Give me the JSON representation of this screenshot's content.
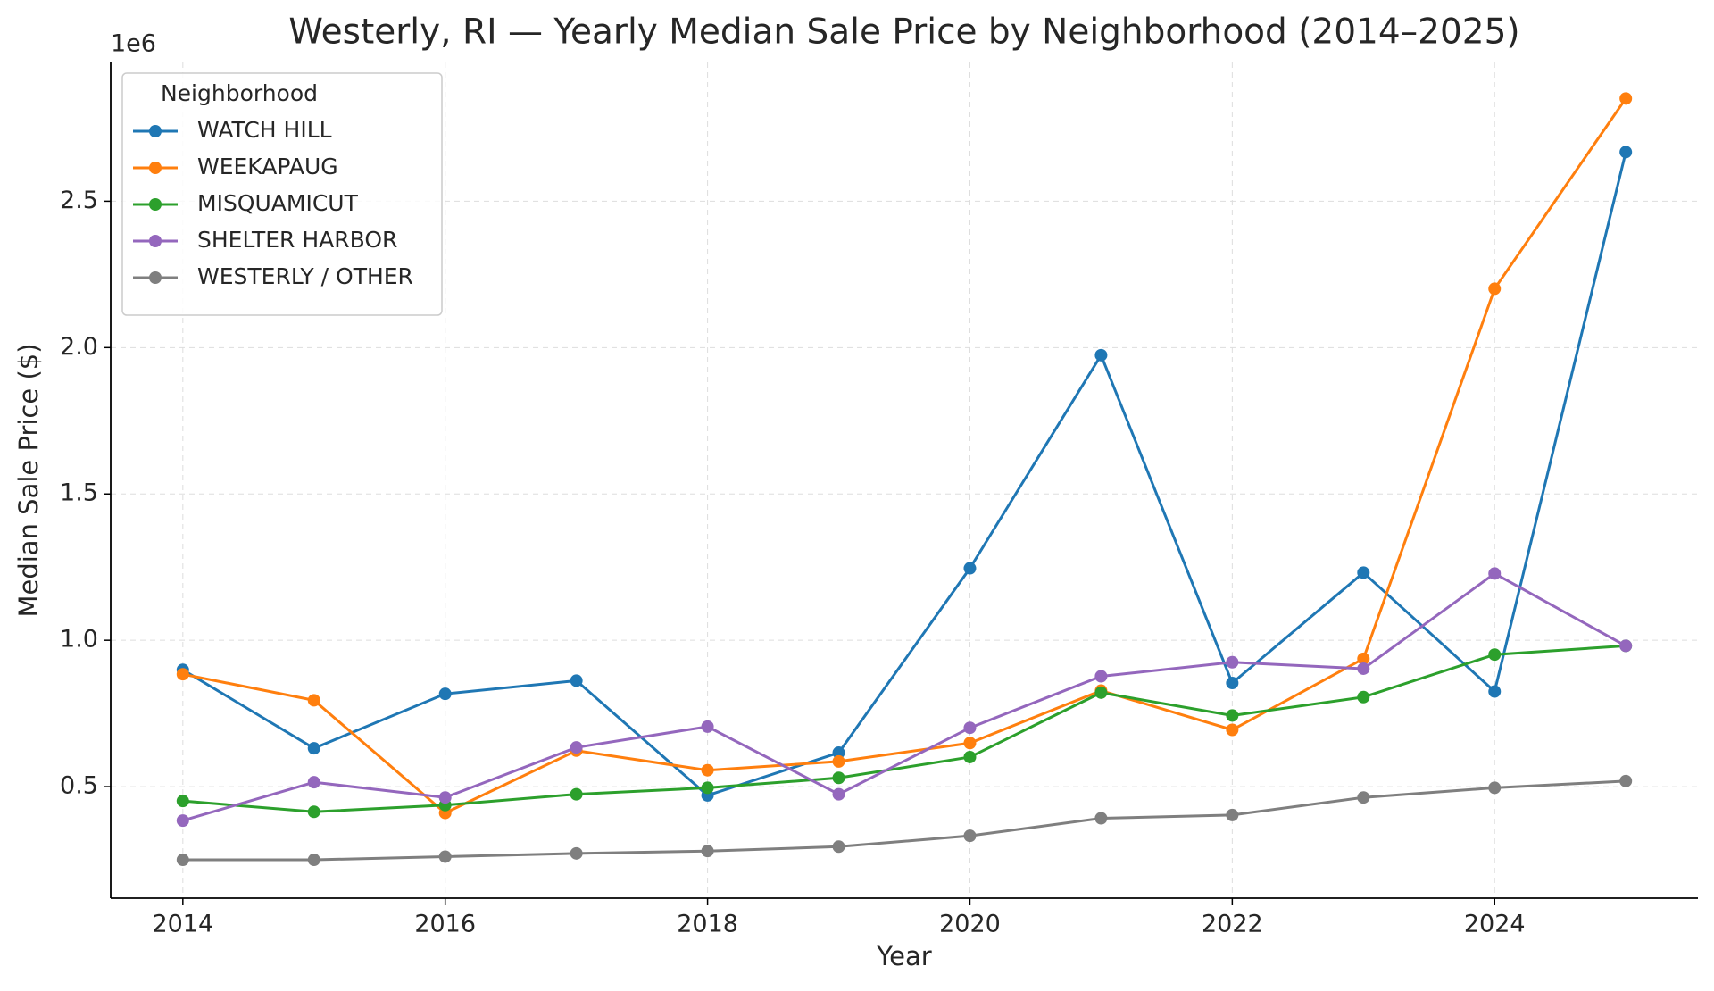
{
  "chart_data": {
    "type": "line",
    "title": "Westerly, RI — Yearly Median Sale Price by Neighborhood (2014–2025)",
    "x_label": "Year",
    "y_label": "Median Sale Price ($)",
    "y_offset_label": "1e6",
    "legend_title": "Neighborhood",
    "legend_loc": "upper left",
    "grid": true,
    "x": [
      2014,
      2015,
      2016,
      2017,
      2018,
      2019,
      2020,
      2021,
      2022,
      2023,
      2024,
      2025
    ],
    "series": [
      {
        "name": "WATCH HILL",
        "color": "#1f77b4",
        "values": [
          899000,
          631000,
          817000,
          862000,
          470000,
          616000,
          1246000,
          1974000,
          854000,
          1231000,
          825000,
          2668000
        ]
      },
      {
        "name": "WEEKAPAUG",
        "color": "#ff7f0e",
        "values": [
          884000,
          795000,
          410000,
          623000,
          556000,
          586000,
          649000,
          828000,
          694000,
          937000,
          2201000,
          2851000
        ]
      },
      {
        "name": "MISQUAMICUT",
        "color": "#2ca02c",
        "values": [
          451000,
          414000,
          437000,
          474000,
          496000,
          530000,
          601000,
          821000,
          743000,
          806000,
          951000,
          981000
        ]
      },
      {
        "name": "SHELTER HARBOR",
        "color": "#9467bd",
        "values": [
          384000,
          515000,
          463000,
          634000,
          705000,
          474000,
          701000,
          877000,
          925000,
          903000,
          1228000,
          981000
        ]
      },
      {
        "name": "WESTERLY / OTHER",
        "color": "#7f7f7f",
        "values": [
          250000,
          250000,
          261000,
          272000,
          280000,
          295000,
          332000,
          392000,
          403000,
          463000,
          496000,
          519000
        ]
      }
    ],
    "xlim": [
      2013.45,
      2025.55
    ],
    "xticks": [
      2014,
      2016,
      2018,
      2020,
      2022,
      2024
    ],
    "ylim": [
      119000,
      2974000
    ],
    "yticks": [
      {
        "value": 500000,
        "label": "0.5"
      },
      {
        "value": 1000000,
        "label": "1.0"
      },
      {
        "value": 1500000,
        "label": "1.5"
      },
      {
        "value": 2000000,
        "label": "2.0"
      },
      {
        "value": 2500000,
        "label": "2.5"
      }
    ]
  }
}
